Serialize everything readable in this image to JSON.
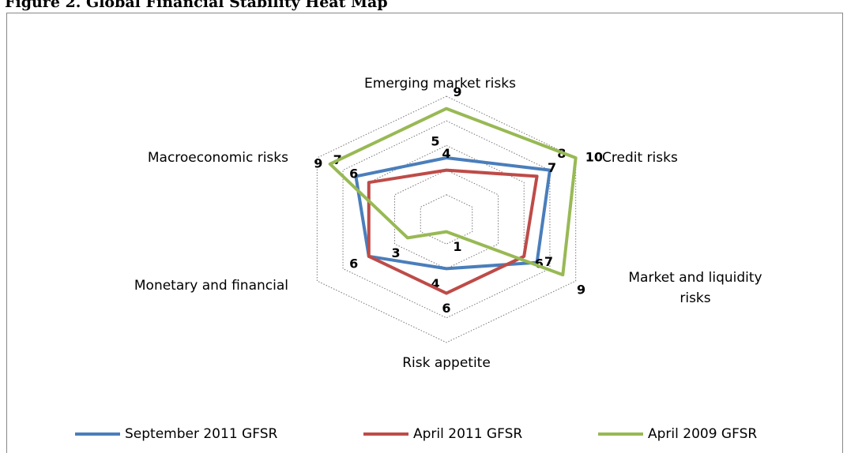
{
  "chart_data": {
    "type": "radar",
    "title": "Figure 2. Global Financial Stability Heat Map",
    "categories": [
      "Emerging market risks",
      "Credit risks",
      "Market and liquidity risks",
      "Risk appetite",
      "Monetary and financial",
      "Macroeconomic risks"
    ],
    "rlim": [
      0,
      10
    ],
    "rticks": [
      2,
      4,
      6,
      8,
      10
    ],
    "grid": true,
    "legend": "bottom",
    "series": [
      {
        "name": "September 2011 GFSR",
        "color": "#4a7ebb",
        "label_color": "#1f6fb5",
        "values": [
          5,
          8,
          7,
          4,
          6,
          7
        ],
        "value_labels": [
          "5",
          "8",
          "7",
          "4",
          null,
          "7"
        ]
      },
      {
        "name": "April 2011 GFSR",
        "color": "#be4b48",
        "label_color": "#b01e1e",
        "values": [
          4,
          7,
          6,
          6,
          6,
          6
        ],
        "value_labels": [
          "4",
          "7",
          "6",
          "6",
          "6",
          "6"
        ]
      },
      {
        "name": "April 2009 GFSR",
        "color": "#98b954",
        "label_color": "#77933c",
        "values": [
          9,
          10,
          9,
          1,
          3,
          9
        ],
        "value_labels": [
          "9",
          "10",
          "9",
          "1",
          "3",
          "9"
        ]
      }
    ]
  }
}
